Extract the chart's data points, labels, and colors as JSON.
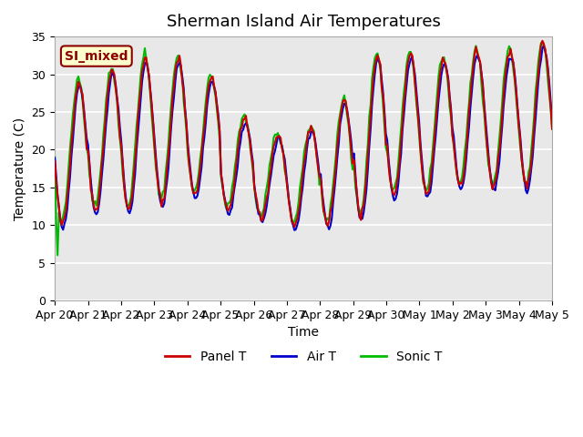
{
  "title": "Sherman Island Air Temperatures",
  "xlabel": "Time",
  "ylabel": "Temperature (C)",
  "ylim": [
    0,
    35
  ],
  "yticks": [
    0,
    5,
    10,
    15,
    20,
    25,
    30,
    35
  ],
  "background_color": "#e8e8e8",
  "fig_color": "#ffffff",
  "label_box_text": "SI_mixed",
  "label_box_bg": "#ffffcc",
  "label_box_border": "#8b0000",
  "legend_entries": [
    "Panel T",
    "Air T",
    "Sonic T"
  ],
  "line_colors": [
    "#cc0000",
    "#0000cc",
    "#00bb00"
  ],
  "line_width": 1.5,
  "title_fontsize": 13,
  "tick_fontsize": 9,
  "x_tick_labels": [
    "Apr 20",
    "Apr 21",
    "Apr 22",
    "Apr 23",
    "Apr 24",
    "Apr 25",
    "Apr 26",
    "Apr 27",
    "Apr 28",
    "Apr 29",
    "Apr 30",
    "May 1",
    "May 2",
    "May 3",
    "May 4",
    "May 5"
  ]
}
